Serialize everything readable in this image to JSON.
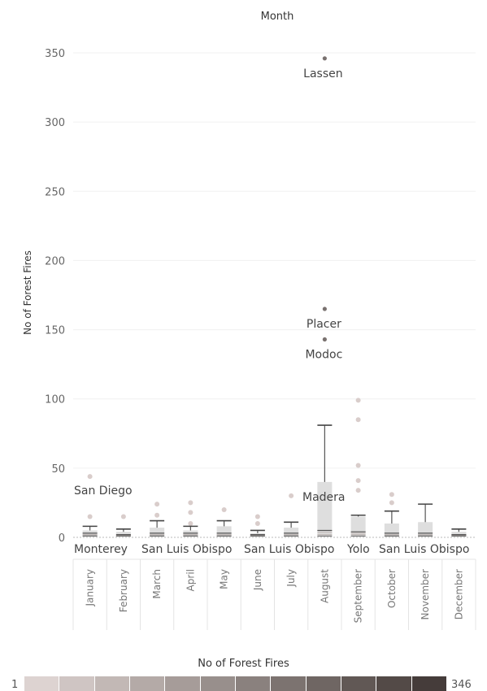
{
  "chart_data": {
    "type": "box",
    "title": "Month",
    "ylabel": "No of Forest Fires",
    "ylim": [
      0,
      360
    ],
    "yticks": [
      0,
      50,
      100,
      150,
      200,
      250,
      300,
      350
    ],
    "categories": [
      "January",
      "February",
      "March",
      "April",
      "May",
      "June",
      "July",
      "August",
      "September",
      "October",
      "November",
      "December"
    ],
    "boxes": [
      {
        "whisker_low": 1,
        "q1": 1,
        "median": 3,
        "q3": 5,
        "whisker_high": 8,
        "outliers": [
          15,
          44
        ]
      },
      {
        "whisker_low": 1,
        "q1": 1,
        "median": 2,
        "q3": 4,
        "whisker_high": 6,
        "outliers": [
          15
        ]
      },
      {
        "whisker_low": 1,
        "q1": 1,
        "median": 3,
        "q3": 7,
        "whisker_high": 12,
        "outliers": [
          16,
          24
        ]
      },
      {
        "whisker_low": 1,
        "q1": 1,
        "median": 3,
        "q3": 5,
        "whisker_high": 8,
        "outliers": [
          10,
          18,
          25
        ]
      },
      {
        "whisker_low": 1,
        "q1": 1,
        "median": 3,
        "q3": 8,
        "whisker_high": 12,
        "outliers": [
          20
        ]
      },
      {
        "whisker_low": 1,
        "q1": 1,
        "median": 2,
        "q3": 3,
        "whisker_high": 5,
        "outliers": [
          10,
          15
        ]
      },
      {
        "whisker_low": 1,
        "q1": 1,
        "median": 3,
        "q3": 7,
        "whisker_high": 11,
        "outliers": [
          30
        ]
      },
      {
        "whisker_low": 1,
        "q1": 2,
        "median": 5,
        "q3": 40,
        "whisker_high": 81,
        "outliers": [
          143,
          165,
          346
        ]
      },
      {
        "whisker_low": 1,
        "q1": 2,
        "median": 4,
        "q3": 15,
        "whisker_high": 16,
        "outliers": [
          34,
          41,
          52,
          85,
          99
        ]
      },
      {
        "whisker_low": 1,
        "q1": 1,
        "median": 3,
        "q3": 10,
        "whisker_high": 19,
        "outliers": [
          25,
          31
        ]
      },
      {
        "whisker_low": 1,
        "q1": 1,
        "median": 3,
        "q3": 11,
        "whisker_high": 24,
        "outliers": []
      },
      {
        "whisker_low": 1,
        "q1": 1,
        "median": 2,
        "q3": 4,
        "whisker_high": 6,
        "outliers": []
      }
    ],
    "annotations": [
      {
        "text": "Lassen",
        "month": "August",
        "value": 346
      },
      {
        "text": "Placer",
        "month": "August",
        "value": 165
      },
      {
        "text": "Modoc",
        "month": "August",
        "value": 143
      },
      {
        "text": "San Diego",
        "month": "January",
        "value": 44
      },
      {
        "text": "Madera",
        "month": "August",
        "value": 30
      },
      {
        "text": "Monterey",
        "month": "January",
        "value": 1
      },
      {
        "text": "San Luis Obispo",
        "month": "March",
        "value": 1
      },
      {
        "text": "San Luis Obispo",
        "month": "June",
        "value": 1
      },
      {
        "text": "Yolo",
        "month": "September",
        "value": 1
      },
      {
        "text": "San Luis Obispo",
        "month": "October",
        "value": 1
      }
    ],
    "color_legend": {
      "title": "No of Forest Fires",
      "min": "1",
      "max": "346",
      "colors": [
        "#ddd3d1",
        "#cfc5c3",
        "#c2b8b5",
        "#b4aaa7",
        "#a69c99",
        "#988f8c",
        "#8a817e",
        "#7c7370",
        "#6f6663",
        "#615855",
        "#534a47",
        "#453c3a"
      ]
    }
  }
}
